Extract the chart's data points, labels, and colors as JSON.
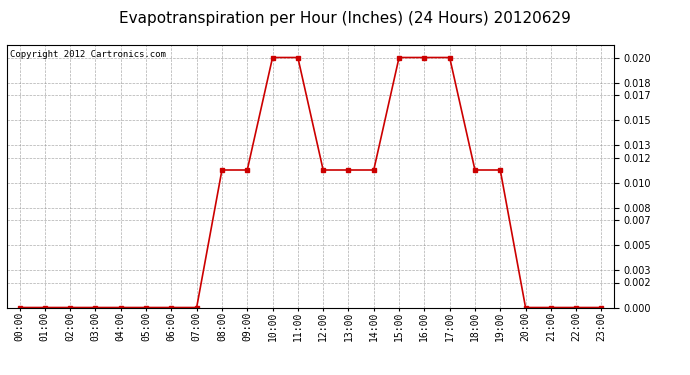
{
  "title": "Evapotranspiration per Hour (Inches) (24 Hours) 20120629",
  "copyright": "Copyright 2012 Cartronics.com",
  "hours": [
    0,
    1,
    2,
    3,
    4,
    5,
    6,
    7,
    8,
    9,
    10,
    11,
    12,
    13,
    14,
    15,
    16,
    17,
    18,
    19,
    20,
    21,
    22,
    23
  ],
  "values": [
    0.0,
    0.0,
    0.0,
    0.0,
    0.0,
    0.0,
    0.0,
    0.0,
    0.011,
    0.011,
    0.02,
    0.02,
    0.011,
    0.011,
    0.011,
    0.02,
    0.02,
    0.02,
    0.011,
    0.011,
    0.0,
    0.0,
    0.0,
    0.0
  ],
  "line_color": "#cc0000",
  "marker": "s",
  "marker_size": 2.5,
  "ylim": [
    0,
    0.021
  ],
  "yticks": [
    0.0,
    0.002,
    0.003,
    0.005,
    0.007,
    0.008,
    0.01,
    0.012,
    0.013,
    0.015,
    0.017,
    0.018,
    0.02
  ],
  "background_color": "#ffffff",
  "grid_color": "#999999",
  "title_fontsize": 11,
  "tick_fontsize": 7,
  "copyright_fontsize": 6.5
}
